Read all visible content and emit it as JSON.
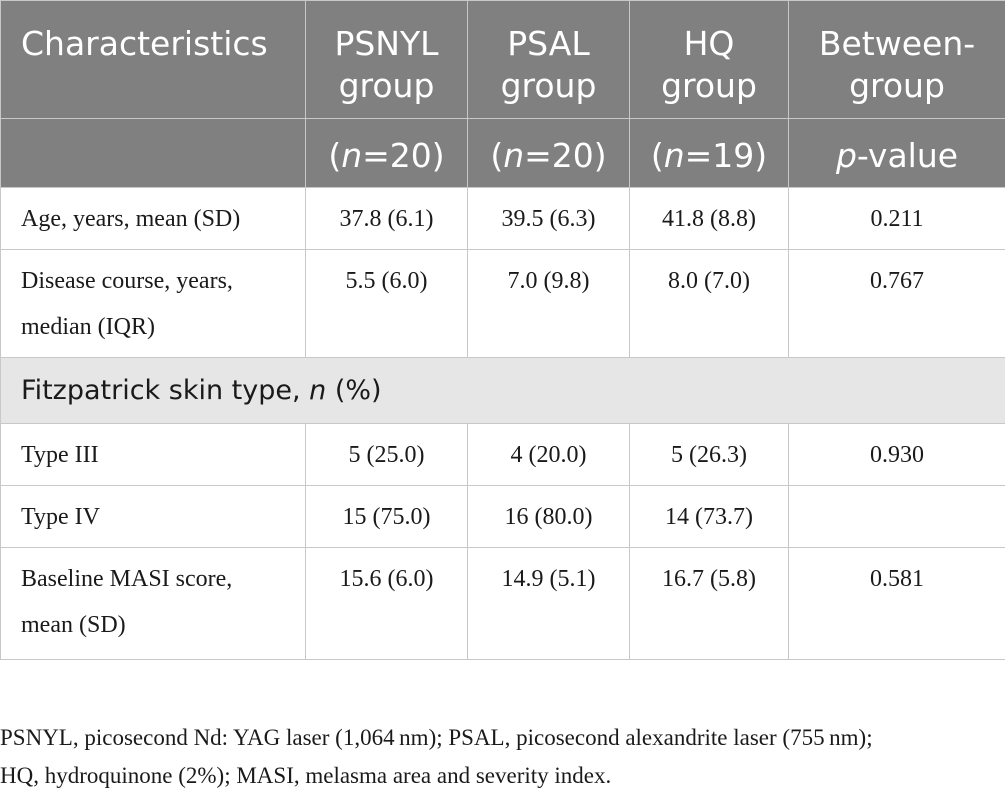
{
  "table": {
    "header": {
      "characteristics": "Characteristics",
      "psnyl_line1": "PSNYL",
      "psnyl_line2": "group",
      "psal_line1": "PSAL",
      "psal_line2": "group",
      "hq_line1": "HQ",
      "hq_line2": "group",
      "between_line1": "Between-",
      "between_line2": "group",
      "psnyl_n": "20",
      "psal_n": "20",
      "hq_n": "19",
      "n_italic": "n",
      "n_eq": "=",
      "paren_open": "(",
      "paren_close": ")",
      "p_italic": "p",
      "p_value_suffix": "-value"
    },
    "rows": [
      {
        "label_line1": "Age, years, mean (SD)",
        "psnyl": "37.8 (6.1)",
        "psal": "39.5 (6.3)",
        "hq": "41.8 (8.8)",
        "p": "0.211"
      },
      {
        "label_line1": "Disease course, years,",
        "label_line2": "median (IQR)",
        "psnyl": "5.5 (6.0)",
        "psal": "7.0 (9.8)",
        "hq": "8.0 (7.0)",
        "p": "0.767"
      },
      {
        "label_line1": "Type III",
        "psnyl": "5 (25.0)",
        "psal": "4 (20.0)",
        "hq": "5 (26.3)",
        "p": "0.930"
      },
      {
        "label_line1": "Type IV",
        "psnyl": "15 (75.0)",
        "psal": "16 (80.0)",
        "hq": "14 (73.7)",
        "p": ""
      },
      {
        "label_line1": "Baseline MASI score,",
        "label_line2": "mean (SD)",
        "psnyl": "15.6 (6.0)",
        "psal": "14.9 (5.1)",
        "hq": "16.7 (5.8)",
        "p": "0.581"
      }
    ],
    "section": {
      "prefix": "Fitzpatrick skin type, ",
      "italic": "n",
      "suffix": " (%)"
    }
  },
  "footnote": {
    "line1": "PSNYL, picosecond Nd: YAG laser (1,064 nm); PSAL, picosecond alexandrite laser (755 nm);",
    "line2": "HQ, hydroquinone (2%); MASI, melasma area and severity index."
  }
}
